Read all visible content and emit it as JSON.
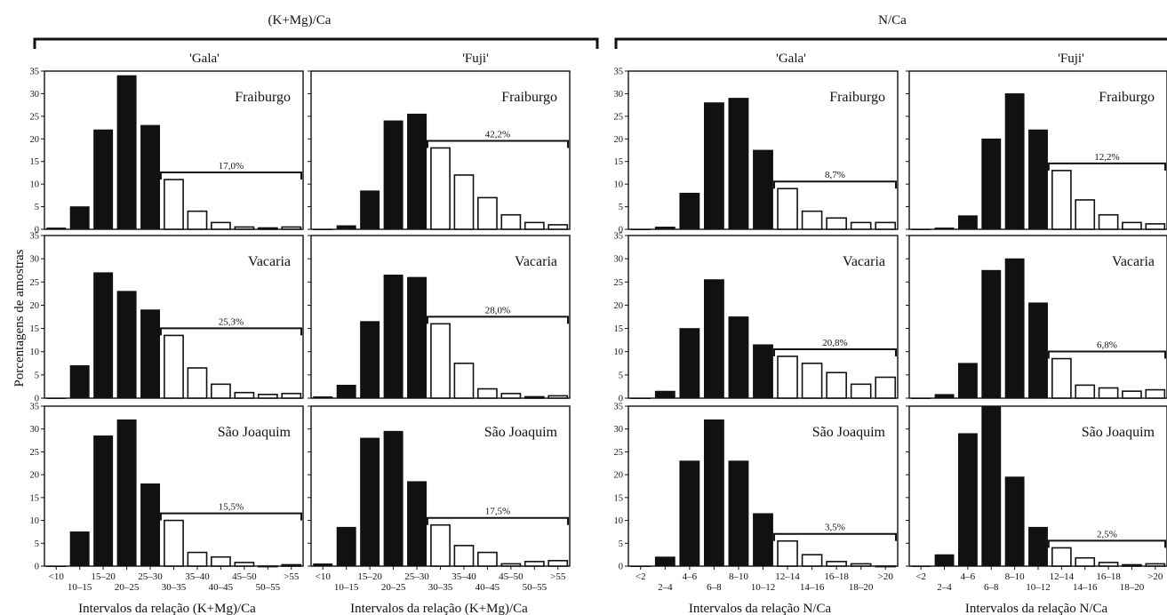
{
  "figure": {
    "ylabel": "Porcentagens de amostras",
    "groups": [
      {
        "title": "(K+Mg)/Ca",
        "xlabel": "Intervalos da relação (K+Mg)/Ca"
      },
      {
        "title": "N/Ca",
        "xlabel": "Intervalos da relação N/Ca"
      }
    ],
    "cultivars": [
      "'Gala'",
      "'Fuji'"
    ],
    "locations": [
      "Fraiburgo",
      "Vacaria",
      "São Joaquim"
    ],
    "colors": {
      "filled": "#111111",
      "open": "#ffffff",
      "stroke": "#111111"
    }
  },
  "chart_data": [
    {
      "type": "bar",
      "id": "km-gala",
      "group": "(K+Mg)/Ca",
      "cultivar": "'Gala'",
      "categories": [
        "<10",
        "10–15",
        "15–20",
        "20–25",
        "25–30",
        "30–35",
        "35–40",
        "40–45",
        "45–50",
        "50–55",
        ">55"
      ],
      "ylim": [
        0,
        35
      ],
      "yticks": [
        0,
        5,
        10,
        15,
        20,
        25,
        30,
        35
      ],
      "filled_count": 5,
      "series": [
        {
          "name": "Fraiburgo",
          "values": [
            0.3,
            5,
            22,
            34,
            23,
            11,
            4,
            1.5,
            0.5,
            0.3,
            0.5
          ],
          "bracket": "17,0%"
        },
        {
          "name": "Vacaria",
          "values": [
            0,
            7,
            27,
            23,
            19,
            13.5,
            6.5,
            3,
            1.2,
            0.8,
            1
          ],
          "bracket": "25,3%"
        },
        {
          "name": "São Joaquim",
          "values": [
            0,
            7.5,
            28.5,
            32,
            18,
            10,
            3,
            2,
            0.8,
            0,
            0.3
          ],
          "bracket": "15,5%"
        }
      ]
    },
    {
      "type": "bar",
      "id": "km-fuji",
      "group": "(K+Mg)/Ca",
      "cultivar": "'Fuji'",
      "categories": [
        "<10",
        "10–15",
        "15–20",
        "20–25",
        "25–30",
        "30–35",
        "35–40",
        "40–45",
        "45–50",
        "50–55",
        ">55"
      ],
      "ylim": [
        0,
        35
      ],
      "yticks": [
        0,
        5,
        10,
        15,
        20,
        25,
        30,
        35
      ],
      "filled_count": 5,
      "series": [
        {
          "name": "Fraiburgo",
          "values": [
            0,
            0.8,
            8.5,
            24,
            25.5,
            18,
            12,
            7,
            3.2,
            1.5,
            1
          ],
          "bracket": "42,2%"
        },
        {
          "name": "Vacaria",
          "values": [
            0.3,
            2.8,
            16.5,
            26.5,
            26,
            16,
            7.5,
            2,
            1,
            0.3,
            0.5
          ],
          "bracket": "28,0%"
        },
        {
          "name": "São Joaquim",
          "values": [
            0.5,
            8.5,
            28,
            29.5,
            18.5,
            9,
            4.5,
            3,
            0.5,
            1,
            1.2
          ],
          "bracket": "17,5%"
        }
      ]
    },
    {
      "type": "bar",
      "id": "nca-gala",
      "group": "N/Ca",
      "cultivar": "'Gala'",
      "categories": [
        "<2",
        "2–4",
        "4–6",
        "6–8",
        "8–10",
        "10–12",
        "12–14",
        "14–16",
        "16–18",
        "18–20",
        ">20"
      ],
      "ylim": [
        0,
        35
      ],
      "yticks": [
        0,
        5,
        10,
        15,
        20,
        25,
        30,
        35
      ],
      "filled_count": 6,
      "series": [
        {
          "name": "Fraiburgo",
          "values": [
            0,
            0.5,
            8,
            28,
            29,
            17.5,
            9,
            4,
            2.5,
            1.5,
            1.5
          ],
          "bracket": "8,7%"
        },
        {
          "name": "Vacaria",
          "values": [
            0,
            1.5,
            15,
            25.5,
            17.5,
            11.5,
            9,
            7.5,
            5.5,
            3,
            4.5
          ],
          "bracket": "20,8%"
        },
        {
          "name": "São Joaquim",
          "values": [
            0,
            2,
            23,
            32,
            23,
            11.5,
            5.5,
            2.5,
            1,
            0.5,
            0
          ],
          "bracket": "3,5%"
        }
      ]
    },
    {
      "type": "bar",
      "id": "nca-fuji",
      "group": "N/Ca",
      "cultivar": "'Fuji'",
      "categories": [
        "<2",
        "2–4",
        "4–6",
        "6–8",
        "8–10",
        "10–12",
        "12–14",
        "14–16",
        "16–18",
        "18–20",
        ">20"
      ],
      "ylim": [
        0,
        35
      ],
      "yticks": [
        0,
        5,
        10,
        15,
        20,
        25,
        30,
        35
      ],
      "filled_count": 6,
      "series": [
        {
          "name": "Fraiburgo",
          "values": [
            0,
            0.3,
            3,
            20,
            30,
            22,
            13,
            6.5,
            3.2,
            1.5,
            1.2
          ],
          "bracket": "12,2%"
        },
        {
          "name": "Vacaria",
          "values": [
            0,
            0.8,
            7.5,
            27.5,
            30,
            20.5,
            8.5,
            2.8,
            2.2,
            1.5,
            1.8
          ],
          "bracket": "6,8%"
        },
        {
          "name": "São Joaquim",
          "values": [
            0,
            2.5,
            29,
            35,
            19.5,
            8.5,
            4,
            1.8,
            0.8,
            0.3,
            0.5
          ],
          "bracket": "2,5%"
        }
      ]
    }
  ]
}
